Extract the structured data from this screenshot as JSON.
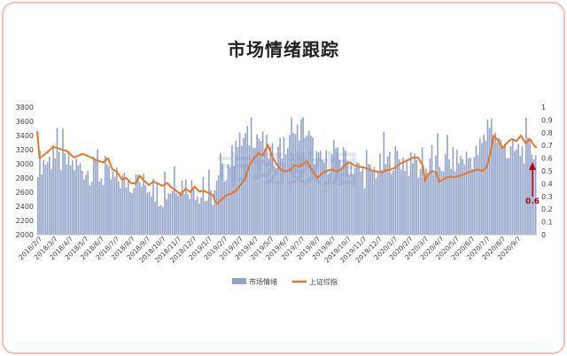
{
  "chart_data": {
    "type": "bar+line",
    "title": "市场情绪跟踪",
    "y_left": {
      "min": 2000,
      "max": 3800,
      "ticks": [
        2000,
        2200,
        2400,
        2600,
        2800,
        3000,
        3200,
        3400,
        3600,
        3800
      ]
    },
    "y_right": {
      "min": 0,
      "max": 1.0,
      "ticks": [
        "0",
        "0.1",
        "0.2",
        "0.3",
        "0.4",
        "0.5",
        "0.6",
        "0.7",
        "0.8",
        "0.9",
        "1"
      ]
    },
    "x_ticks": [
      "2018/2/7",
      "2018/3/7",
      "2018/4/7",
      "2018/5/7",
      "2018/6/7",
      "2018/7/7",
      "2018/8/7",
      "2018/9/7",
      "2018/10/7",
      "2018/11/7",
      "2018/12/7",
      "2019/1/7",
      "2019/2/7",
      "2019/3/7",
      "2019/4/7",
      "2019/5/7",
      "2019/6/7",
      "2019/7/7",
      "2019/8/7",
      "2019/9/7",
      "2019/10/7",
      "2019/11/7",
      "2019/12/7",
      "2020/1/7",
      "2020/2/7",
      "2020/3/7",
      "2020/4/7",
      "2020/5/7",
      "2020/6/7",
      "2020/7/7",
      "2020/8/7",
      "2020/9/7"
    ],
    "series": [
      {
        "name": "市场情绪",
        "axis": "right",
        "color": "#6f86b8",
        "monthly_values": [
          0.55,
          0.58,
          0.55,
          0.5,
          0.45,
          0.42,
          0.4,
          0.38,
          0.3,
          0.4,
          0.36,
          0.25,
          0.5,
          0.72,
          0.78,
          0.6,
          0.68,
          0.85,
          0.55,
          0.58,
          0.55,
          0.45,
          0.53,
          0.6,
          0.52,
          0.5,
          0.55,
          0.58,
          0.6,
          0.82,
          0.62,
          0.65
        ]
      },
      {
        "name": "上证综指",
        "axis": "left",
        "color": "#e87722",
        "points": [
          [
            0,
            3460
          ],
          [
            1,
            3080
          ],
          [
            4,
            3150
          ],
          [
            7,
            3240
          ],
          [
            10,
            3210
          ],
          [
            13,
            3180
          ],
          [
            16,
            3090
          ],
          [
            20,
            3140
          ],
          [
            23,
            3100
          ],
          [
            26,
            3050
          ],
          [
            29,
            3020
          ],
          [
            31,
            3080
          ],
          [
            33,
            2920
          ],
          [
            35,
            2890
          ],
          [
            37,
            2780
          ],
          [
            39,
            2800
          ],
          [
            41,
            2730
          ],
          [
            43,
            2720
          ],
          [
            45,
            2830
          ],
          [
            47,
            2760
          ],
          [
            49,
            2700
          ],
          [
            51,
            2750
          ],
          [
            53,
            2720
          ],
          [
            55,
            2690
          ],
          [
            57,
            2730
          ],
          [
            59,
            2660
          ],
          [
            61,
            2620
          ],
          [
            63,
            2560
          ],
          [
            65,
            2650
          ],
          [
            67,
            2600
          ],
          [
            69,
            2680
          ],
          [
            71,
            2610
          ],
          [
            73,
            2620
          ],
          [
            75,
            2590
          ],
          [
            77,
            2560
          ],
          [
            78,
            2470
          ],
          [
            79,
            2440
          ],
          [
            81,
            2500
          ],
          [
            83,
            2560
          ],
          [
            85,
            2580
          ],
          [
            87,
            2620
          ],
          [
            89,
            2700
          ],
          [
            91,
            2780
          ],
          [
            93,
            2980
          ],
          [
            95,
            3080
          ],
          [
            97,
            3150
          ],
          [
            99,
            3120
          ],
          [
            101,
            3270
          ],
          [
            103,
            3100
          ],
          [
            105,
            2990
          ],
          [
            107,
            2910
          ],
          [
            109,
            2890
          ],
          [
            111,
            2920
          ],
          [
            113,
            2980
          ],
          [
            115,
            2960
          ],
          [
            117,
            3010
          ],
          [
            118,
            3040
          ],
          [
            120,
            2940
          ],
          [
            121,
            2880
          ],
          [
            123,
            2800
          ],
          [
            125,
            2870
          ],
          [
            127,
            2900
          ],
          [
            129,
            2920
          ],
          [
            131,
            2890
          ],
          [
            133,
            2920
          ],
          [
            135,
            2990
          ],
          [
            137,
            3020
          ],
          [
            139,
            2980
          ],
          [
            141,
            2960
          ],
          [
            143,
            2950
          ],
          [
            145,
            2930
          ],
          [
            147,
            2900
          ],
          [
            149,
            2890
          ],
          [
            151,
            2880
          ],
          [
            153,
            2910
          ],
          [
            155,
            2920
          ],
          [
            157,
            2950
          ],
          [
            159,
            3000
          ],
          [
            161,
            3030
          ],
          [
            163,
            3060
          ],
          [
            165,
            3090
          ],
          [
            167,
            3085
          ],
          [
            169,
            2980
          ],
          [
            170,
            2760
          ],
          [
            171,
            2840
          ],
          [
            173,
            2900
          ],
          [
            175,
            2870
          ],
          [
            176,
            2750
          ],
          [
            177,
            2760
          ],
          [
            179,
            2800
          ],
          [
            181,
            2820
          ],
          [
            183,
            2810
          ],
          [
            185,
            2830
          ],
          [
            187,
            2850
          ],
          [
            189,
            2880
          ],
          [
            191,
            2900
          ],
          [
            193,
            2920
          ],
          [
            195,
            2900
          ],
          [
            197,
            2950
          ],
          [
            199,
            3200
          ],
          [
            200,
            3400
          ],
          [
            202,
            3330
          ],
          [
            204,
            3220
          ],
          [
            206,
            3300
          ],
          [
            208,
            3350
          ],
          [
            210,
            3320
          ],
          [
            212,
            3400
          ],
          [
            214,
            3290
          ],
          [
            216,
            3350
          ],
          [
            218,
            3250
          ],
          [
            219,
            3230
          ]
        ],
        "total_points": 220
      }
    ],
    "legend": {
      "position": "bottom",
      "items": [
        "市场情绪",
        "上证综指"
      ]
    },
    "annotation": {
      "text": "0.6",
      "color": "#c00000",
      "marker": "up-arrow"
    },
    "watermark": "市场数据"
  }
}
